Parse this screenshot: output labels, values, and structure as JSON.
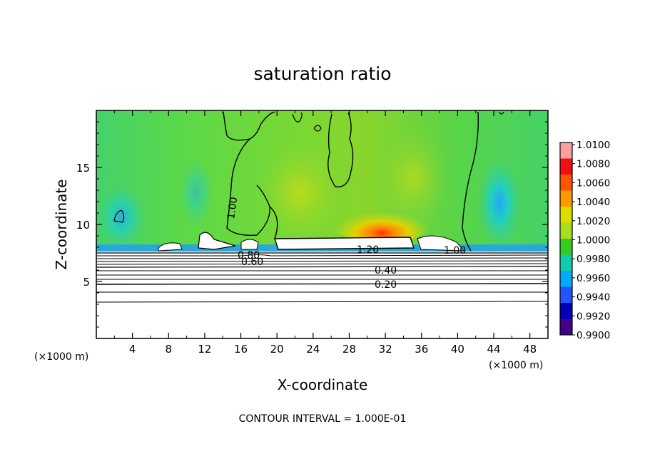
{
  "chart_data": {
    "type": "heatmap",
    "title": "saturation ratio",
    "xlabel": "X-coordinate",
    "ylabel": "Z-coordinate",
    "x_unit": "(×1000 m)",
    "x_unit_right": "(×1000 m)",
    "xlim": [
      0,
      50
    ],
    "ylim": [
      0,
      20
    ],
    "x_ticks": [
      "4",
      "8",
      "12",
      "16",
      "20",
      "24",
      "28",
      "32",
      "36",
      "40",
      "44",
      "48"
    ],
    "y_ticks": [
      "5",
      "10",
      "15"
    ],
    "colorbar": {
      "labels": [
        "1.0100",
        "1.0080",
        "1.0060",
        "1.0040",
        "1.0020",
        "1.0000",
        "0.9980",
        "0.9960",
        "0.9940",
        "0.9920",
        "0.9900"
      ],
      "colors": [
        "#ffa0a0",
        "#ee1111",
        "#ff5500",
        "#ff9900",
        "#dddd00",
        "#aadd22",
        "#33cc22",
        "#11ccaa",
        "#00aaff",
        "#2255ff",
        "#0000bb",
        "#440088"
      ]
    },
    "contour_labels": [
      "1.00",
      "0.80",
      "0.60",
      "1.20",
      "1.00",
      "0.40",
      "0.20"
    ],
    "footer": "CONTOUR INTERVAL = 1.000E-01"
  }
}
